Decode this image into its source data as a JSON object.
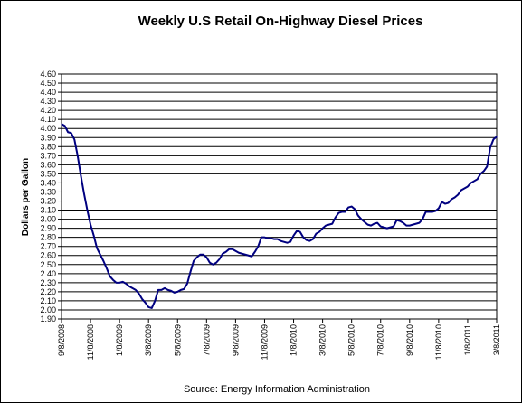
{
  "chart_data": {
    "type": "line",
    "title": "Weekly U.S Retail On-Highway Diesel Prices",
    "ylabel": "Dollars per Gallon",
    "xlabel": "",
    "source": "Source:  Energy Information Administration",
    "ylim": [
      1.9,
      4.6
    ],
    "y_ticks": [
      "1.90",
      "2.00",
      "2.10",
      "2.20",
      "2.30",
      "2.40",
      "2.50",
      "2.60",
      "2.70",
      "2.80",
      "2.90",
      "3.00",
      "3.10",
      "3.20",
      "3.30",
      "3.40",
      "3.50",
      "3.60",
      "3.70",
      "3.80",
      "3.90",
      "4.00",
      "4.10",
      "4.20",
      "4.30",
      "4.40",
      "4.50",
      "4.60"
    ],
    "x_ticks": [
      "9/8/2008",
      "11/8/2008",
      "1/8/2009",
      "3/8/2009",
      "5/8/2009",
      "7/8/2009",
      "9/8/2009",
      "11/8/2009",
      "1/8/2010",
      "3/8/2010",
      "5/8/2010",
      "7/8/2010",
      "9/8/2010",
      "11/8/2010",
      "1/8/2011",
      "3/8/2011"
    ],
    "grid": true,
    "line_color": "#000080",
    "series": [
      {
        "values": [
          4.05,
          4.03,
          3.96,
          3.95,
          3.88,
          3.7,
          3.48,
          3.28,
          3.1,
          2.94,
          2.82,
          2.68,
          2.61,
          2.54,
          2.46,
          2.37,
          2.33,
          2.3,
          2.3,
          2.31,
          2.29,
          2.26,
          2.24,
          2.22,
          2.18,
          2.12,
          2.08,
          2.03,
          2.02,
          2.1,
          2.22,
          2.22,
          2.24,
          2.22,
          2.21,
          2.19,
          2.2,
          2.22,
          2.23,
          2.29,
          2.42,
          2.54,
          2.58,
          2.61,
          2.61,
          2.58,
          2.52,
          2.5,
          2.52,
          2.56,
          2.62,
          2.64,
          2.67,
          2.67,
          2.65,
          2.63,
          2.62,
          2.61,
          2.6,
          2.59,
          2.64,
          2.7,
          2.8,
          2.8,
          2.79,
          2.79,
          2.78,
          2.78,
          2.76,
          2.75,
          2.74,
          2.75,
          2.82,
          2.87,
          2.86,
          2.8,
          2.77,
          2.76,
          2.78,
          2.84,
          2.86,
          2.9,
          2.93,
          2.94,
          2.95,
          3.02,
          3.07,
          3.08,
          3.08,
          3.13,
          3.14,
          3.11,
          3.04,
          3.0,
          2.97,
          2.94,
          2.93,
          2.95,
          2.96,
          2.92,
          2.91,
          2.9,
          2.91,
          2.92,
          2.99,
          2.98,
          2.96,
          2.93,
          2.93,
          2.94,
          2.95,
          2.96,
          3.0,
          3.08,
          3.08,
          3.08,
          3.09,
          3.12,
          3.19,
          3.17,
          3.18,
          3.22,
          3.24,
          3.27,
          3.32,
          3.34,
          3.36,
          3.4,
          3.42,
          3.44,
          3.5,
          3.53,
          3.58,
          3.79,
          3.88,
          3.91
        ]
      }
    ]
  }
}
